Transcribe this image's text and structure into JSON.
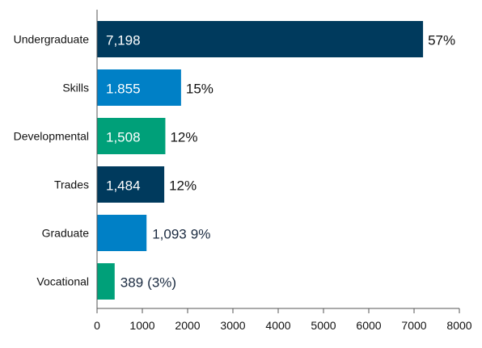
{
  "chart_data": {
    "type": "bar",
    "orientation": "horizontal",
    "title": "",
    "xlabel": "",
    "ylabel": "",
    "categories": [
      "Undergraduate",
      "Skills",
      "Developmental",
      "Trades",
      "Graduate",
      "Vocational"
    ],
    "values": [
      7198,
      1855,
      1508,
      1484,
      1093,
      389
    ],
    "value_labels": [
      "7,198",
      "1.855",
      "1,508",
      "1,484",
      "1,093",
      "389"
    ],
    "percent_labels": [
      "57%",
      "15%",
      "12%",
      "12%",
      "9%",
      "(3%)"
    ],
    "colors": [
      "#003a5d",
      "#0080c6",
      "#00a079",
      "#003a5d",
      "#0080c6",
      "#00a079"
    ],
    "xlim": [
      0,
      8000
    ],
    "xticks": [
      0,
      1000,
      2000,
      3000,
      4000,
      5000,
      6000,
      7000,
      8000
    ],
    "grid": false,
    "legend": "none"
  }
}
